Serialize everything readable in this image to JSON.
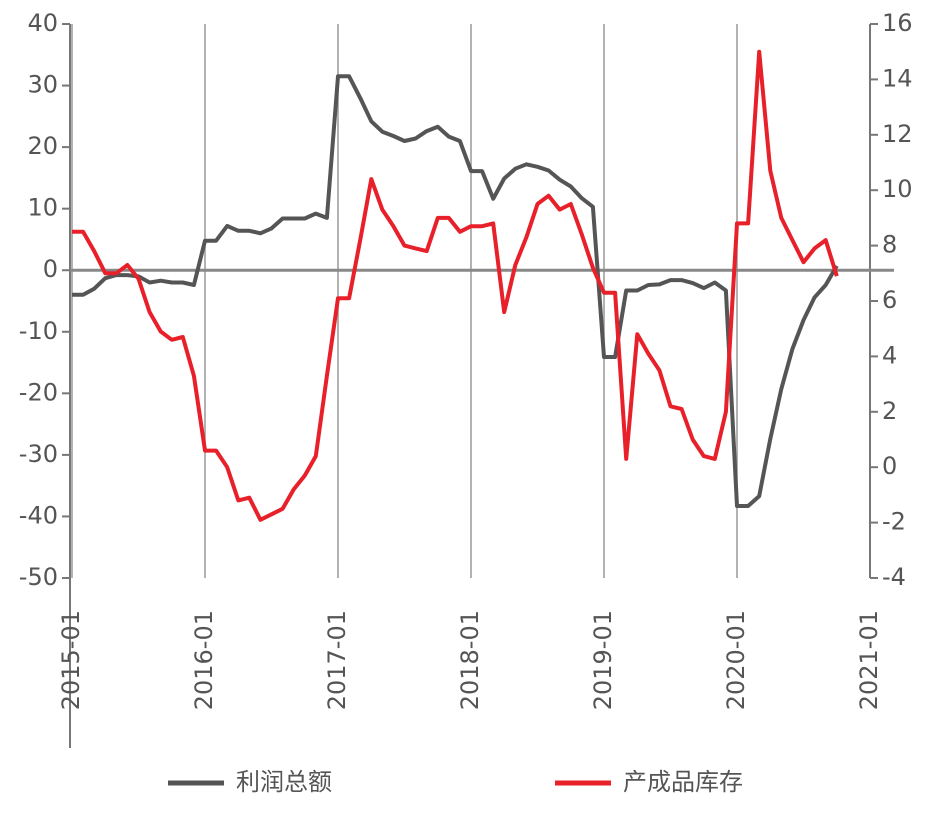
{
  "chart_data": {
    "type": "line",
    "x": [
      "2015-01",
      "2015-02",
      "2015-03",
      "2015-04",
      "2015-05",
      "2015-06",
      "2015-07",
      "2015-08",
      "2015-09",
      "2015-10",
      "2015-11",
      "2015-12",
      "2016-01",
      "2016-02",
      "2016-03",
      "2016-04",
      "2016-05",
      "2016-06",
      "2016-07",
      "2016-08",
      "2016-09",
      "2016-10",
      "2016-11",
      "2016-12",
      "2017-01",
      "2017-02",
      "2017-03",
      "2017-04",
      "2017-05",
      "2017-06",
      "2017-07",
      "2017-08",
      "2017-09",
      "2017-10",
      "2017-11",
      "2017-12",
      "2018-01",
      "2018-02",
      "2018-03",
      "2018-04",
      "2018-05",
      "2018-06",
      "2018-07",
      "2018-08",
      "2018-09",
      "2018-10",
      "2018-11",
      "2018-12",
      "2019-01",
      "2019-02",
      "2019-03",
      "2019-04",
      "2019-05",
      "2019-06",
      "2019-07",
      "2019-08",
      "2019-09",
      "2019-10",
      "2019-11",
      "2019-12",
      "2020-01",
      "2020-02",
      "2020-03",
      "2020-04",
      "2020-05",
      "2020-06",
      "2020-07",
      "2020-08",
      "2020-09",
      "2020-10"
    ],
    "series": [
      {
        "name": "利润总额",
        "color": "#555555",
        "axis": "y",
        "values": [
          -4,
          -4,
          -3,
          -1.3,
          -0.8,
          -0.8,
          -1,
          -2,
          -1.7,
          -2,
          -2,
          -2.4,
          4.8,
          4.8,
          7.2,
          6.4,
          6.4,
          6,
          6.8,
          8.4,
          8.4,
          8.4,
          9.2,
          8.5,
          31.5,
          31.5,
          28,
          24.2,
          22.5,
          21.8,
          21,
          21.4,
          22.6,
          23.3,
          21.7,
          21,
          16.1,
          16.1,
          11.6,
          14.9,
          16.5,
          17.2,
          16.8,
          16.2,
          14.7,
          13.6,
          11.7,
          10.3,
          -14.1,
          -14.1,
          -3.3,
          -3.3,
          -2.4,
          -2.3,
          -1.6,
          -1.6,
          -2.1,
          -2.9,
          -2,
          -3.3,
          -38.3,
          -38.3,
          -36.7,
          -27.4,
          -19.3,
          -12.8,
          -8.1,
          -4.4,
          -2.4,
          0.7
        ]
      },
      {
        "name": "产成品库存",
        "color": "#e8202a",
        "axis": "y2",
        "values": [
          8.5,
          8.5,
          7.8,
          7.0,
          7.0,
          7.3,
          6.8,
          5.6,
          4.9,
          4.6,
          4.7,
          3.3,
          0.6,
          0.6,
          0,
          -1.2,
          -1.1,
          -1.9,
          -1.7,
          -1.5,
          -0.8,
          -0.3,
          0.4,
          3.3,
          6.1,
          6.1,
          8.2,
          10.4,
          9.3,
          8.7,
          8.0,
          7.9,
          7.8,
          9.0,
          9.0,
          8.5,
          8.7,
          8.7,
          8.8,
          5.6,
          7.3,
          8.3,
          9.5,
          9.8,
          9.3,
          9.5,
          8.4,
          7.2,
          6.3,
          6.3,
          0.3,
          4.8,
          4.1,
          3.5,
          2.2,
          2.1,
          1.0,
          0.4,
          0.3,
          2.0,
          8.8,
          8.8,
          15,
          10.7,
          9.0,
          8.2,
          7.4,
          7.9,
          8.2,
          6.9
        ]
      }
    ],
    "xticks": [
      "2015-01",
      "2016-01",
      "2017-01",
      "2018-01",
      "2019-01",
      "2020-01",
      "2021-01"
    ],
    "ylim": [
      -50,
      40
    ],
    "yticks": [
      -50,
      -40,
      -30,
      -20,
      -10,
      0,
      10,
      20,
      30,
      40
    ],
    "y2lim": [
      -4,
      16
    ],
    "y2ticks": [
      -4,
      -2,
      0,
      2,
      4,
      6,
      8,
      10,
      12,
      14,
      16
    ],
    "grid": true,
    "legend": "bottom"
  }
}
